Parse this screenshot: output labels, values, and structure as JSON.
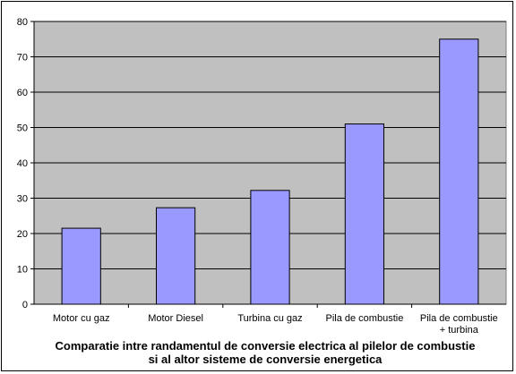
{
  "chart_data": {
    "type": "bar",
    "title_lines": [
      "Comparatie intre randamentul de conversie electrica al pilelor de combustie",
      "si al altor sisteme de conversie energetica"
    ],
    "categories": [
      [
        "Motor cu gaz"
      ],
      [
        "Motor Diesel"
      ],
      [
        "Turbina cu gaz"
      ],
      [
        "Pila de combustie"
      ],
      [
        "Pila de combustie",
        "+ turbina"
      ]
    ],
    "values": [
      21.5,
      27.3,
      32.2,
      51,
      75
    ],
    "ylim": [
      0,
      80
    ],
    "yticks": [
      "0",
      "10",
      "20",
      "30",
      "40",
      "50",
      "60",
      "70",
      "80"
    ],
    "grid": true,
    "colors": {
      "plot_bg": "#c0c0c0",
      "bar": "#9999ff",
      "grid": "#000000"
    }
  }
}
